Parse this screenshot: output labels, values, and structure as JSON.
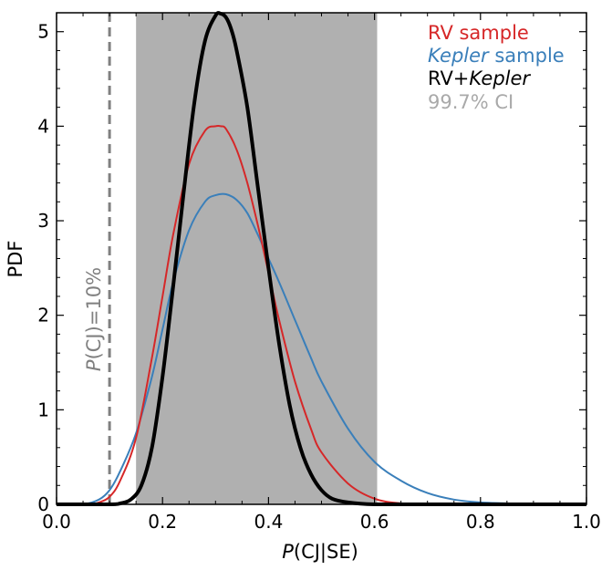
{
  "chart_data": {
    "type": "line",
    "title": "",
    "xlabel_prefix": "P",
    "xlabel_suffix": "(CJ|SE)",
    "ylabel": "PDF",
    "xlim": [
      0.0,
      1.0
    ],
    "ylim": [
      0.0,
      5.2
    ],
    "x_ticks": [
      0.0,
      0.2,
      0.4,
      0.6,
      0.8,
      1.0
    ],
    "x_tick_labels": [
      "0.0",
      "0.2",
      "0.4",
      "0.6",
      "0.8",
      "1.0"
    ],
    "y_ticks": [
      0,
      1,
      2,
      3,
      4,
      5
    ],
    "y_tick_labels": [
      "0",
      "1",
      "2",
      "3",
      "4",
      "5"
    ],
    "shaded_interval": {
      "name": "99.7% CI",
      "x0": 0.15,
      "x1": 0.605,
      "color": "#b0b0b0"
    },
    "reference_line": {
      "x": 0.1,
      "label_prefix": "P",
      "label_suffix": "(CJ)=10%",
      "color": "#808080"
    },
    "series": [
      {
        "name": "Kepler sample",
        "color": "#3a7fba",
        "width": 2,
        "x": [
          0.0,
          0.05,
          0.08,
          0.1,
          0.12,
          0.15,
          0.18,
          0.2,
          0.22,
          0.25,
          0.28,
          0.3,
          0.32,
          0.34,
          0.36,
          0.38,
          0.4,
          0.42,
          0.45,
          0.48,
          0.5,
          0.55,
          0.6,
          0.65,
          0.7,
          0.75,
          0.8,
          0.85,
          0.9,
          0.95,
          1.0
        ],
        "values": [
          0.0,
          0.0,
          0.05,
          0.15,
          0.35,
          0.75,
          1.35,
          1.85,
          2.35,
          2.9,
          3.2,
          3.27,
          3.28,
          3.22,
          3.08,
          2.85,
          2.6,
          2.35,
          1.95,
          1.55,
          1.3,
          0.8,
          0.45,
          0.25,
          0.12,
          0.05,
          0.02,
          0.01,
          0.0,
          0.0,
          0.0
        ]
      },
      {
        "name": "RV sample",
        "color": "#d62728",
        "width": 2,
        "x": [
          0.0,
          0.06,
          0.08,
          0.1,
          0.12,
          0.15,
          0.18,
          0.2,
          0.22,
          0.25,
          0.28,
          0.3,
          0.31,
          0.32,
          0.34,
          0.36,
          0.38,
          0.4,
          0.42,
          0.45,
          0.48,
          0.5,
          0.55,
          0.6,
          0.65,
          0.7,
          0.8,
          1.0
        ],
        "values": [
          0.0,
          0.0,
          0.02,
          0.08,
          0.25,
          0.7,
          1.55,
          2.2,
          2.85,
          3.6,
          3.95,
          4.0,
          4.0,
          3.97,
          3.75,
          3.4,
          2.95,
          2.45,
          1.95,
          1.3,
          0.8,
          0.55,
          0.22,
          0.06,
          0.01,
          0.0,
          0.0,
          0.0
        ]
      },
      {
        "name": "RV+Kepler",
        "color": "#000000",
        "width": 4,
        "x": [
          0.0,
          0.1,
          0.12,
          0.14,
          0.16,
          0.18,
          0.2,
          0.22,
          0.24,
          0.26,
          0.28,
          0.3,
          0.31,
          0.32,
          0.33,
          0.34,
          0.36,
          0.38,
          0.4,
          0.42,
          0.44,
          0.46,
          0.48,
          0.5,
          0.52,
          0.55,
          0.6,
          0.7,
          1.0
        ],
        "values": [
          0.0,
          0.0,
          0.01,
          0.05,
          0.2,
          0.6,
          1.35,
          2.3,
          3.3,
          4.25,
          4.9,
          5.17,
          5.19,
          5.15,
          5.02,
          4.8,
          4.2,
          3.35,
          2.5,
          1.7,
          1.05,
          0.6,
          0.32,
          0.15,
          0.06,
          0.02,
          0.0,
          0.0,
          0.0
        ]
      }
    ],
    "legend": {
      "placement": "top-right",
      "entries": [
        {
          "plain": "RV sample",
          "italic": "",
          "tail": "",
          "color": "#d62728"
        },
        {
          "plain": "",
          "italic": "Kepler",
          "tail": " sample",
          "color": "#3a7fba"
        },
        {
          "plain": "RV+",
          "italic": "Kepler",
          "tail": "",
          "color": "#000000"
        },
        {
          "plain": "99.7% CI",
          "italic": "",
          "tail": "",
          "color": "#a9a9a9"
        }
      ]
    }
  }
}
